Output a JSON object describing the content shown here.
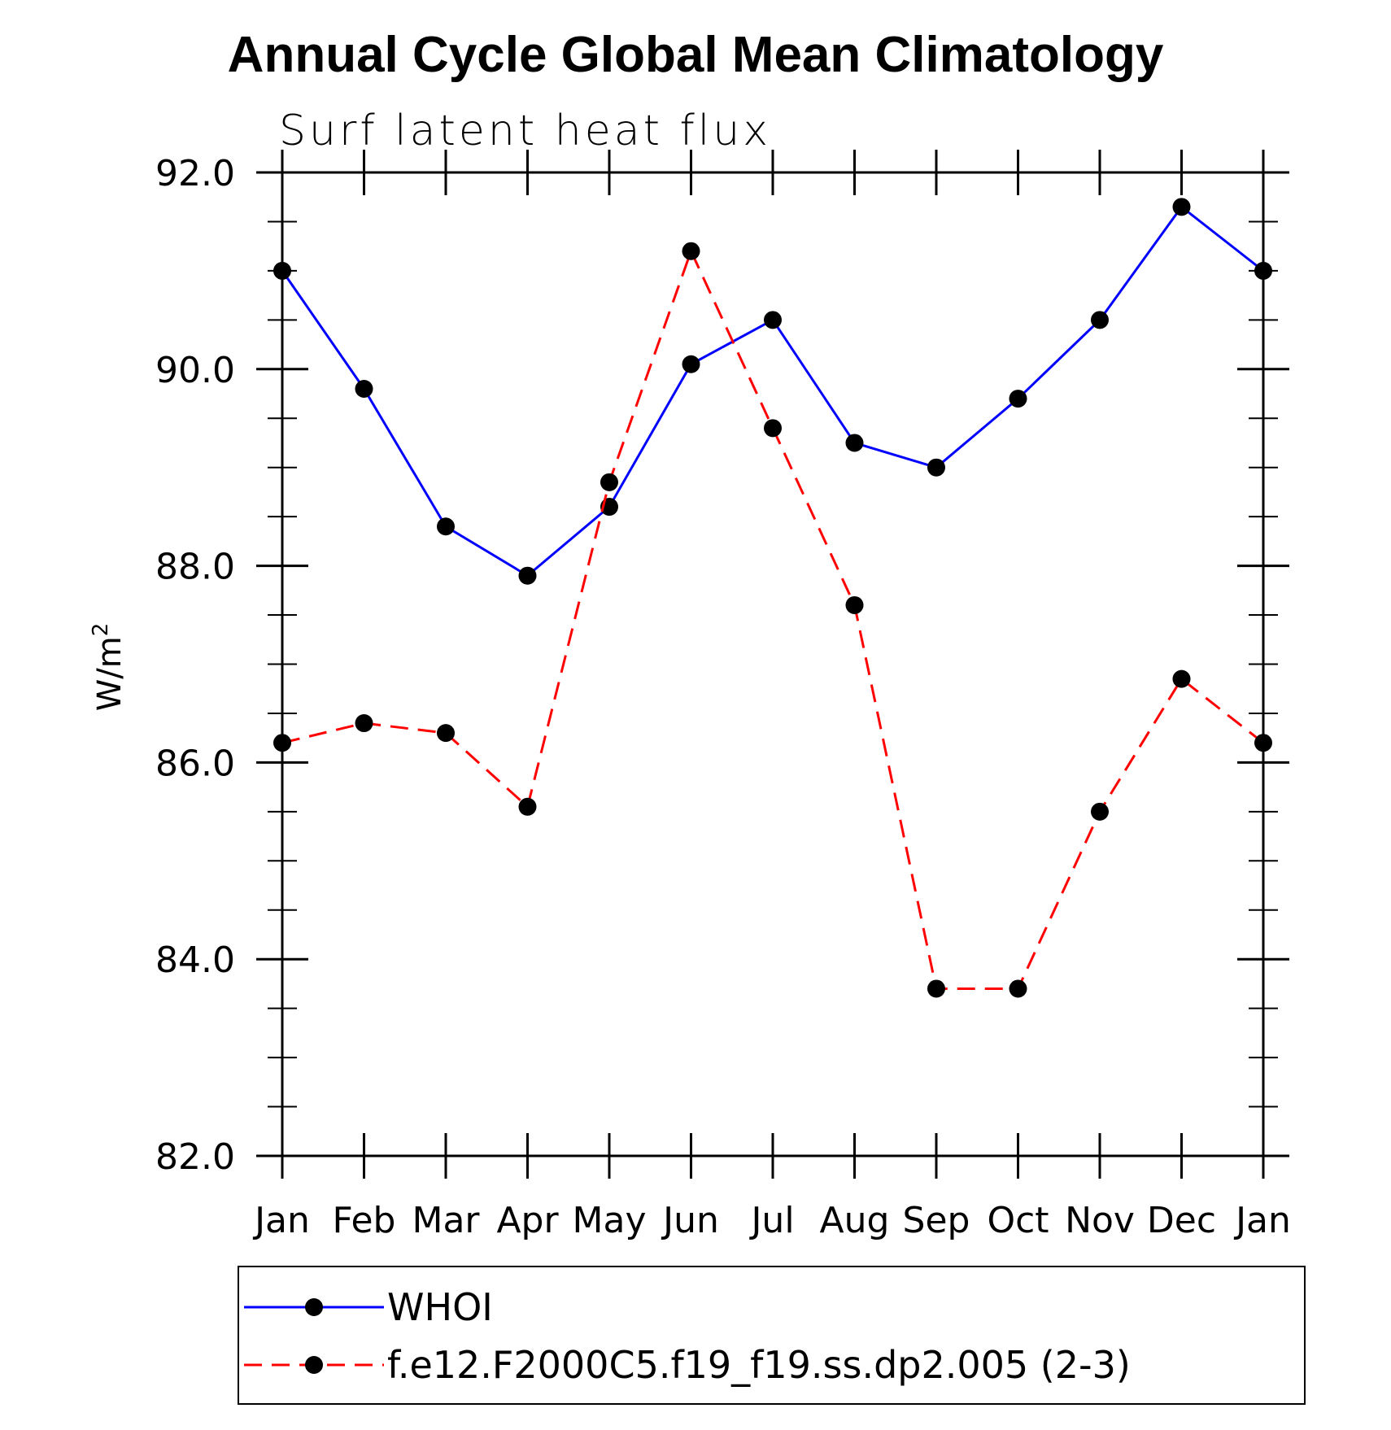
{
  "chart_data": {
    "type": "line",
    "title": "Annual Cycle Global Mean Climatology",
    "subtitle": "Surf latent heat flux",
    "xlabel": "",
    "ylabel": "W/m",
    "ylabel_superscript": "2",
    "categories": [
      "Jan",
      "Feb",
      "Mar",
      "Apr",
      "May",
      "Jun",
      "Jul",
      "Aug",
      "Sep",
      "Oct",
      "Nov",
      "Dec",
      "Jan"
    ],
    "ylim": [
      82.0,
      92.0
    ],
    "y_ticks": [
      "82.0",
      "84.0",
      "86.0",
      "88.0",
      "90.0",
      "92.0"
    ],
    "y_minor_step": 0.5,
    "grid": false,
    "legend_position": "bottom",
    "series": [
      {
        "name": "WHOI",
        "color": "#0000ff",
        "line_style": "solid",
        "marker": "filled-circle",
        "values": [
          91.0,
          89.8,
          88.4,
          87.9,
          88.6,
          90.05,
          90.5,
          89.25,
          89.0,
          89.7,
          90.5,
          91.65,
          91.0
        ]
      },
      {
        "name": "f.e12.F2000C5.f19_f19.ss.dp2.005 (2-3)",
        "color": "#ff0000",
        "line_style": "dashed",
        "marker": "filled-circle",
        "values": [
          86.2,
          86.4,
          86.3,
          85.55,
          88.85,
          91.2,
          89.4,
          87.6,
          83.7,
          83.7,
          85.5,
          86.85,
          86.2
        ]
      }
    ]
  }
}
